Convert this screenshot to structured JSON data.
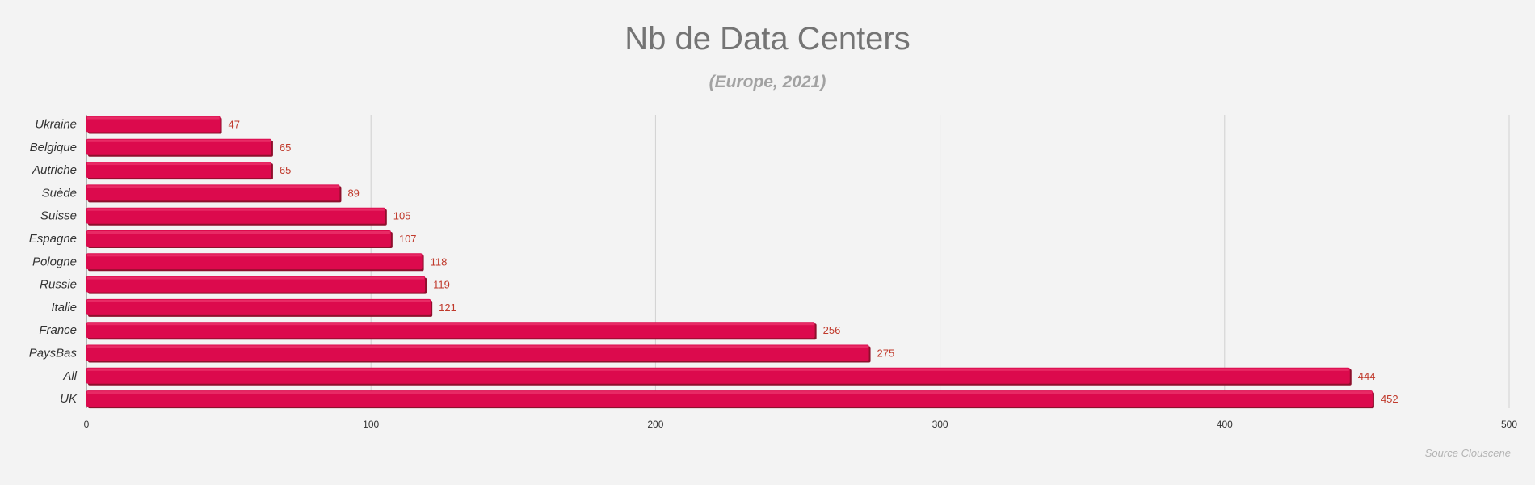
{
  "chart_data": {
    "type": "bar",
    "orientation": "horizontal",
    "title": "Nb de Data Centers",
    "subtitle": "(Europe, 2021)",
    "source": "Source Clouscene",
    "categories": [
      "Ukraine",
      "Belgique",
      "Autriche",
      "Suède",
      "Suisse",
      "Espagne",
      "Pologne",
      "Russie",
      "Italie",
      "France",
      "PaysBas",
      "All",
      "UK"
    ],
    "values": [
      47,
      65,
      65,
      89,
      105,
      107,
      118,
      119,
      121,
      256,
      275,
      444,
      452
    ],
    "xlim": [
      0,
      500
    ],
    "xticks": [
      0,
      100,
      200,
      300,
      400,
      500
    ],
    "grid": true,
    "legend": "none",
    "colors": {
      "bar": "#dc0a4d",
      "bar_shadow": "#8e0f2c",
      "value_label": "#c0392b",
      "grid": "#d0d0d0"
    }
  }
}
